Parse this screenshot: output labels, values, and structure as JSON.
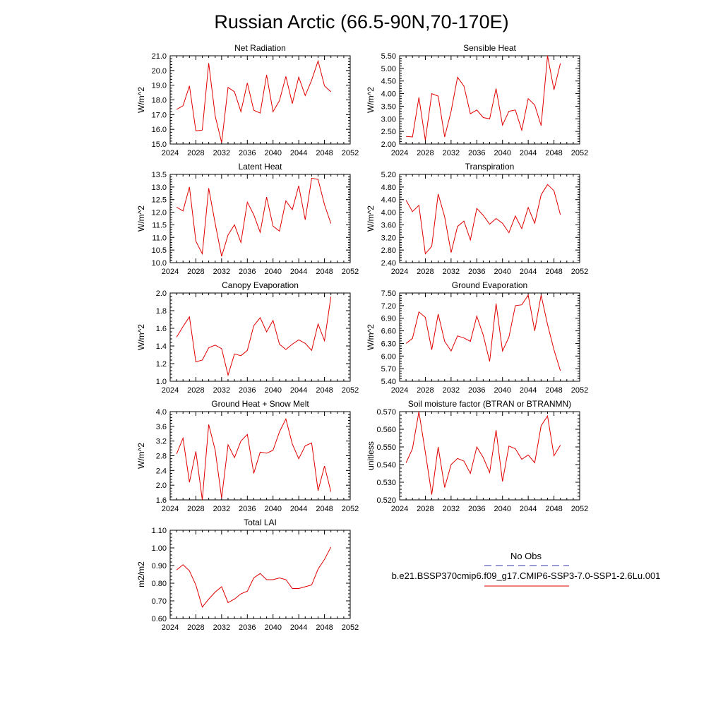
{
  "figure": {
    "title": "Russian Arctic (66.5-90N,70-170E)"
  },
  "legend": {
    "entries": [
      {
        "label": "No Obs",
        "color": "#3333aa",
        "dash": "dashed"
      },
      {
        "label": "b.e21.BSSP370cmip6.f09_g17.CMIP6-SSP3-7.0-SSP1-2.6Lu.001",
        "color": "#e00000",
        "dash": "solid"
      }
    ]
  },
  "series_color": "#e00000",
  "chart_data": [
    {
      "type": "line",
      "title": "Net Radiation",
      "ylabel": "W/m^2",
      "xlim": [
        2024,
        2052
      ],
      "xticks": [
        "2024",
        "2028",
        "2032",
        "2036",
        "2040",
        "2044",
        "2048",
        "2052"
      ],
      "ylim": [
        15.0,
        21.0
      ],
      "yticks": [
        "15.0",
        "16.0",
        "17.0",
        "18.0",
        "19.0",
        "20.0",
        "21.0"
      ],
      "x": [
        2025,
        2026,
        2027,
        2028,
        2029,
        2030,
        2031,
        2032,
        2033,
        2034,
        2035,
        2036,
        2037,
        2038,
        2039,
        2040,
        2041,
        2042,
        2043,
        2044,
        2045,
        2046,
        2047,
        2048,
        2049
      ],
      "values": [
        17.35,
        17.6,
        18.95,
        15.9,
        15.95,
        20.5,
        16.9,
        15.1,
        18.85,
        18.55,
        17.2,
        19.15,
        17.3,
        17.1,
        19.7,
        17.2,
        17.95,
        19.6,
        17.75,
        19.55,
        18.3,
        19.35,
        20.65,
        18.95,
        18.55
      ]
    },
    {
      "type": "line",
      "title": "Sensible Heat",
      "ylabel": "W/m^2",
      "xlim": [
        2024,
        2052
      ],
      "xticks": [
        "2024",
        "2028",
        "2032",
        "2036",
        "2040",
        "2044",
        "2048",
        "2052"
      ],
      "ylim": [
        2.0,
        5.5
      ],
      "yticks": [
        "2.00",
        "2.50",
        "3.00",
        "3.50",
        "4.00",
        "4.50",
        "5.00",
        "5.50"
      ],
      "x": [
        2025,
        2026,
        2027,
        2028,
        2029,
        2030,
        2031,
        2032,
        2033,
        2034,
        2035,
        2036,
        2037,
        2038,
        2039,
        2040,
        2041,
        2042,
        2043,
        2044,
        2045,
        2046,
        2047,
        2048,
        2049
      ],
      "values": [
        2.3,
        2.28,
        3.85,
        2.15,
        4.0,
        3.9,
        2.28,
        3.3,
        4.65,
        4.3,
        3.2,
        3.35,
        3.05,
        3.0,
        4.2,
        2.75,
        3.3,
        3.35,
        2.55,
        3.8,
        3.55,
        2.73,
        5.5,
        4.15,
        5.2
      ]
    },
    {
      "type": "line",
      "title": "Latent Heat",
      "ylabel": "W/m^2",
      "xlim": [
        2024,
        2052
      ],
      "xticks": [
        "2024",
        "2028",
        "2032",
        "2036",
        "2040",
        "2044",
        "2048",
        "2052"
      ],
      "ylim": [
        10.0,
        13.5
      ],
      "yticks": [
        "10.0",
        "10.5",
        "11.0",
        "11.5",
        "12.0",
        "12.5",
        "13.0",
        "13.5"
      ],
      "x": [
        2025,
        2026,
        2027,
        2028,
        2029,
        2030,
        2031,
        2032,
        2033,
        2034,
        2035,
        2036,
        2037,
        2038,
        2039,
        2040,
        2041,
        2042,
        2043,
        2044,
        2045,
        2046,
        2047,
        2048,
        2049
      ],
      "values": [
        12.2,
        12.05,
        13.0,
        10.85,
        10.35,
        12.95,
        11.55,
        10.25,
        11.1,
        11.5,
        10.8,
        12.4,
        11.9,
        11.2,
        12.6,
        11.45,
        11.25,
        12.45,
        12.1,
        13.05,
        11.7,
        13.35,
        13.3,
        12.3,
        11.55
      ]
    },
    {
      "type": "line",
      "title": "Transpiration",
      "ylabel": "W/m^2",
      "xlim": [
        2024,
        2052
      ],
      "xticks": [
        "2024",
        "2028",
        "2032",
        "2036",
        "2040",
        "2044",
        "2048",
        "2052"
      ],
      "ylim": [
        2.4,
        5.2
      ],
      "yticks": [
        "2.40",
        "2.80",
        "3.20",
        "3.60",
        "4.00",
        "4.40",
        "4.80",
        "5.20"
      ],
      "x": [
        2025,
        2026,
        2027,
        2028,
        2029,
        2030,
        2031,
        2032,
        2033,
        2034,
        2035,
        2036,
        2037,
        2038,
        2039,
        2040,
        2041,
        2042,
        2043,
        2044,
        2045,
        2046,
        2047,
        2048,
        2049
      ],
      "values": [
        4.38,
        4.02,
        4.22,
        2.68,
        2.92,
        4.58,
        3.85,
        2.72,
        3.55,
        3.72,
        3.12,
        4.12,
        3.9,
        3.62,
        3.8,
        3.65,
        3.35,
        3.88,
        3.48,
        4.15,
        3.65,
        4.55,
        4.88,
        4.68,
        3.92
      ]
    },
    {
      "type": "line",
      "title": "Canopy Evaporation",
      "ylabel": "W/m^2",
      "xlim": [
        2024,
        2052
      ],
      "xticks": [
        "2024",
        "2028",
        "2032",
        "2036",
        "2040",
        "2044",
        "2048",
        "2052"
      ],
      "ylim": [
        1.0,
        2.0
      ],
      "yticks": [
        "1.0",
        "1.2",
        "1.4",
        "1.6",
        "1.8",
        "2.0"
      ],
      "x": [
        2025,
        2026,
        2027,
        2028,
        2029,
        2030,
        2031,
        2032,
        2033,
        2034,
        2035,
        2036,
        2037,
        2038,
        2039,
        2040,
        2041,
        2042,
        2043,
        2044,
        2045,
        2046,
        2047,
        2048,
        2049
      ],
      "values": [
        1.5,
        1.62,
        1.73,
        1.22,
        1.24,
        1.38,
        1.41,
        1.37,
        1.07,
        1.31,
        1.29,
        1.35,
        1.63,
        1.72,
        1.56,
        1.69,
        1.42,
        1.36,
        1.42,
        1.47,
        1.43,
        1.35,
        1.65,
        1.46,
        1.96
      ]
    },
    {
      "type": "line",
      "title": "Ground Evaporation",
      "ylabel": "W/m^2",
      "xlim": [
        2024,
        2052
      ],
      "xticks": [
        "2024",
        "2028",
        "2032",
        "2036",
        "2040",
        "2044",
        "2048",
        "2052"
      ],
      "ylim": [
        5.4,
        7.5
      ],
      "yticks": [
        "5.40",
        "5.70",
        "6.00",
        "6.30",
        "6.60",
        "6.90",
        "7.20",
        "7.50"
      ],
      "x": [
        2025,
        2026,
        2027,
        2028,
        2029,
        2030,
        2031,
        2032,
        2033,
        2034,
        2035,
        2036,
        2037,
        2038,
        2039,
        2040,
        2041,
        2042,
        2043,
        2044,
        2045,
        2046,
        2047,
        2048,
        2049
      ],
      "values": [
        6.3,
        6.42,
        7.05,
        6.92,
        6.15,
        7.0,
        6.35,
        6.12,
        6.48,
        6.43,
        6.35,
        6.95,
        6.5,
        5.87,
        7.25,
        6.12,
        6.45,
        7.2,
        7.22,
        7.45,
        6.6,
        7.45,
        6.75,
        6.15,
        5.65
      ]
    },
    {
      "type": "line",
      "title": "Ground Heat + Snow Melt",
      "ylabel": "W/m^2",
      "xlim": [
        2024,
        2052
      ],
      "xticks": [
        "2024",
        "2028",
        "2032",
        "2036",
        "2040",
        "2044",
        "2048",
        "2052"
      ],
      "ylim": [
        1.6,
        4.0
      ],
      "yticks": [
        "1.6",
        "2.0",
        "2.4",
        "2.8",
        "3.2",
        "3.6",
        "4.0"
      ],
      "x": [
        2025,
        2026,
        2027,
        2028,
        2029,
        2030,
        2031,
        2032,
        2033,
        2034,
        2035,
        2036,
        2037,
        2038,
        2039,
        2040,
        2041,
        2042,
        2043,
        2044,
        2045,
        2046,
        2047,
        2048,
        2049
      ],
      "values": [
        2.85,
        3.28,
        2.08,
        2.92,
        1.6,
        3.65,
        2.95,
        1.65,
        3.1,
        2.75,
        3.2,
        3.38,
        2.32,
        2.9,
        2.87,
        2.95,
        3.45,
        3.8,
        3.12,
        2.72,
        3.07,
        3.15,
        1.85,
        2.52,
        1.82
      ]
    },
    {
      "type": "line",
      "title": "Soil moisture factor (BTRAN or BTRANMN)",
      "ylabel": "unitless",
      "xlim": [
        2024,
        2052
      ],
      "xticks": [
        "2024",
        "2028",
        "2032",
        "2036",
        "2040",
        "2044",
        "2048",
        "2052"
      ],
      "ylim": [
        0.52,
        0.57
      ],
      "yticks": [
        "0.520",
        "0.530",
        "0.540",
        "0.550",
        "0.560",
        "0.570"
      ],
      "x": [
        2025,
        2026,
        2027,
        2028,
        2029,
        2030,
        2031,
        2032,
        2033,
        2034,
        2035,
        2036,
        2037,
        2038,
        2039,
        2040,
        2041,
        2042,
        2043,
        2044,
        2045,
        2046,
        2047,
        2048,
        2049
      ],
      "values": [
        0.541,
        0.549,
        0.57,
        0.547,
        0.523,
        0.55,
        0.527,
        0.54,
        0.5435,
        0.542,
        0.535,
        0.55,
        0.544,
        0.5355,
        0.5595,
        0.5305,
        0.5505,
        0.549,
        0.543,
        0.5455,
        0.541,
        0.562,
        0.5675,
        0.545,
        0.551
      ]
    },
    {
      "type": "line",
      "title": "Total LAI",
      "ylabel": "m2/m2",
      "xlim": [
        2024,
        2052
      ],
      "xticks": [
        "2024",
        "2028",
        "2032",
        "2036",
        "2040",
        "2044",
        "2048",
        "2052"
      ],
      "ylim": [
        0.6,
        1.1
      ],
      "yticks": [
        "0.60",
        "0.70",
        "0.80",
        "0.90",
        "1.00",
        "1.10"
      ],
      "x": [
        2025,
        2026,
        2027,
        2028,
        2029,
        2030,
        2031,
        2032,
        2033,
        2034,
        2035,
        2036,
        2037,
        2038,
        2039,
        2040,
        2041,
        2042,
        2043,
        2044,
        2045,
        2046,
        2047,
        2048,
        2049
      ],
      "values": [
        0.875,
        0.905,
        0.87,
        0.79,
        0.665,
        0.71,
        0.75,
        0.78,
        0.69,
        0.71,
        0.74,
        0.755,
        0.83,
        0.855,
        0.82,
        0.82,
        0.83,
        0.82,
        0.77,
        0.77,
        0.78,
        0.79,
        0.88,
        0.935,
        1.005
      ]
    }
  ]
}
